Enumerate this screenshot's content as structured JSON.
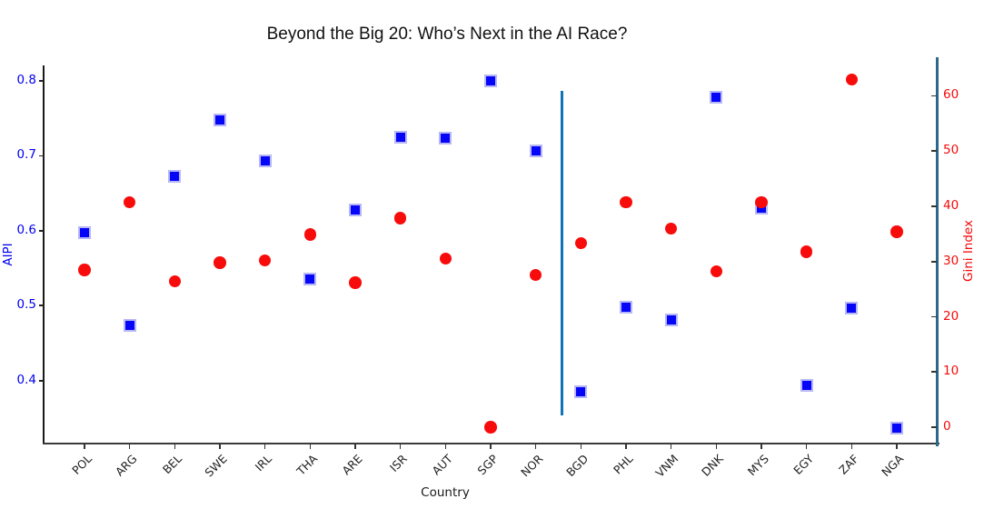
{
  "title": "Beyond the Big 20: Who’s Next in the AI Race?",
  "chart_data": {
    "type": "scatter",
    "categories": [
      "POL",
      "ARG",
      "BEL",
      "SWE",
      "IRL",
      "THA",
      "ARE",
      "ISR",
      "AUT",
      "SGP",
      "NOR",
      "BGD",
      "PHL",
      "VNM",
      "DNK",
      "MYS",
      "EGY",
      "ZAF",
      "NGA"
    ],
    "series": [
      {
        "name": "AIPI",
        "axis": "left",
        "marker": "square",
        "color": "#0505f7",
        "edge_color": "#b7b7f8",
        "values": [
          0.597,
          0.474,
          0.672,
          0.748,
          0.693,
          0.535,
          0.628,
          0.725,
          0.724,
          0.8,
          0.706,
          0.385,
          0.498,
          0.481,
          0.778,
          0.63,
          0.394,
          0.497,
          0.337
        ]
      },
      {
        "name": "Gini Index",
        "axis": "right",
        "marker": "circle",
        "color": "#f80b0b",
        "edge_color": "#f80b0b",
        "values": [
          28.5,
          40.7,
          26.4,
          29.8,
          30.2,
          34.9,
          26.2,
          37.9,
          30.5,
          0.0,
          27.6,
          33.3,
          40.7,
          36.0,
          28.2,
          40.7,
          31.8,
          63.0,
          35.4
        ]
      }
    ],
    "xlabel": "Country",
    "left_axis": {
      "label": "AIPI",
      "color": "#0101ee",
      "ticks": [
        0.4,
        0.5,
        0.6,
        0.7,
        0.8
      ],
      "range": [
        0.3161,
        0.8228
      ]
    },
    "right_axis": {
      "label": "Gini Index",
      "color": "#f50909",
      "ticks": [
        0,
        10,
        20,
        30,
        40,
        50,
        60
      ],
      "range": [
        -2.96,
        65.84
      ],
      "spine_color": "#2d6886"
    },
    "separator": {
      "x_index": 10.58,
      "color": "#0f73b5",
      "between": [
        "NOR",
        "BGD"
      ]
    },
    "grid": false,
    "legend": "none"
  }
}
